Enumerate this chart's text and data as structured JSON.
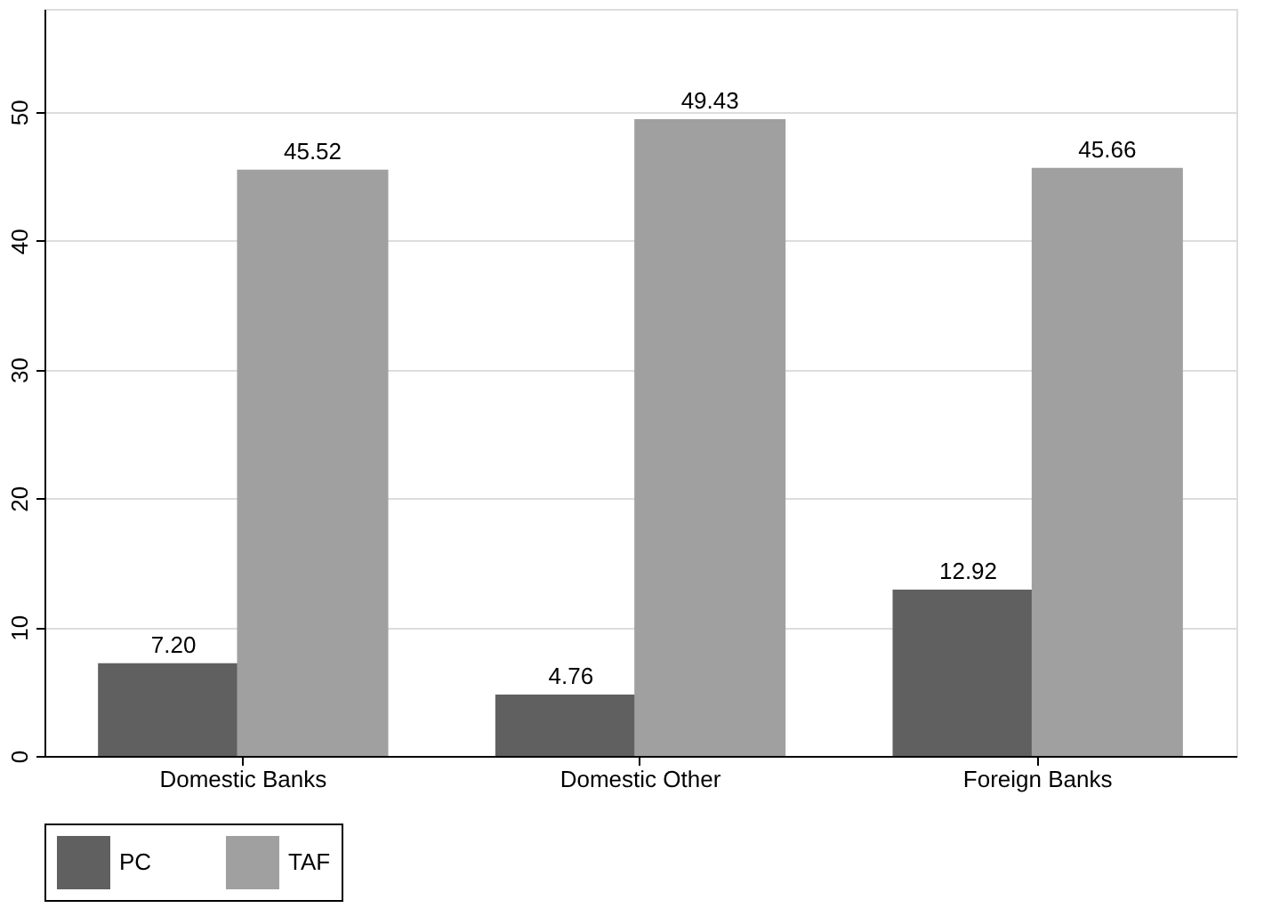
{
  "chart_data": {
    "type": "bar",
    "categories": [
      "Domestic Banks",
      "Domestic Other",
      "Foreign Banks"
    ],
    "series": [
      {
        "name": "PC",
        "color": "#606060",
        "values": [
          7.2,
          4.76,
          12.92
        ],
        "value_labels": [
          "7.20",
          "4.76",
          "12.92"
        ]
      },
      {
        "name": "TAF",
        "color": "#a0a0a0",
        "values": [
          45.52,
          49.43,
          45.66
        ],
        "value_labels": [
          "45.52",
          "49.43",
          "45.66"
        ]
      }
    ],
    "ylim": [
      0,
      58
    ],
    "yticks": [
      0,
      10,
      20,
      30,
      40,
      50
    ],
    "grid": "y",
    "legend": "bottom"
  }
}
